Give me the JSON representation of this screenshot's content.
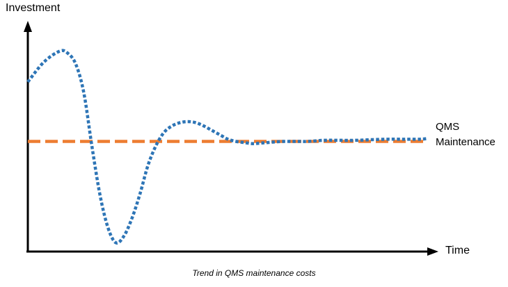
{
  "chart_data": {
    "type": "line",
    "title": "",
    "caption": "Trend in QMS maintenance costs",
    "xlabel": "Time",
    "ylabel": "Investment",
    "xlim": [
      0,
      100
    ],
    "ylim": [
      0,
      100
    ],
    "grid": false,
    "series": [
      {
        "name": "",
        "style": "dotted",
        "color": "#2e75b6",
        "x": [
          0,
          4,
          8,
          10,
          12,
          14,
          16,
          18,
          20,
          22,
          24,
          26,
          28,
          30,
          32,
          34,
          36,
          38,
          40,
          42,
          44,
          46,
          48,
          50,
          52,
          54,
          56,
          58,
          60,
          62,
          64,
          66,
          68,
          70,
          74,
          78,
          82,
          86,
          90,
          94,
          98,
          100
        ],
        "y": [
          77,
          86,
          91,
          90,
          85,
          72,
          48,
          26,
          11,
          4,
          7,
          15,
          26,
          39,
          48,
          54,
          57,
          58.5,
          59,
          58.5,
          57,
          55,
          53,
          51,
          50,
          49.5,
          49,
          49.2,
          49.5,
          49.8,
          50,
          50,
          50,
          50,
          50.5,
          50.5,
          50.5,
          50.8,
          51,
          51,
          51,
          51.3
        ]
      },
      {
        "name": "QMS Maintenance",
        "name_lines": [
          "QMS",
          "Maintenance"
        ],
        "style": "dashed",
        "color": "#ed7d31",
        "x": [
          0,
          100
        ],
        "y": [
          50,
          50
        ]
      }
    ]
  }
}
